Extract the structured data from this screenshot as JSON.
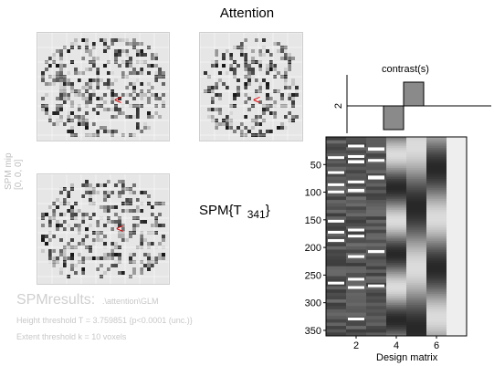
{
  "header": {
    "title": "Attention"
  },
  "mip": {
    "caption_line1": "SPM mip",
    "caption_line2": "[0, 0, 0]",
    "marker_glyph": "<"
  },
  "statistic": {
    "label": "SPM{T",
    "df": "341",
    "close": "}"
  },
  "results": {
    "title": "SPMresults:",
    "path": ".\\attention\\GLM",
    "height_threshold": "Height threshold T = 3.759851  {p<0.0001 (unc.)}",
    "extent_threshold": "Extent threshold k = 10 voxels"
  },
  "contrast": {
    "title": "contrast(s)",
    "ytick": "2",
    "weights": [
      0,
      -1,
      1,
      0,
      0,
      0,
      0
    ]
  },
  "design_matrix": {
    "label": "Design matrix",
    "yticks": [
      "50",
      "100",
      "150",
      "200",
      "250",
      "300",
      "350"
    ],
    "xticks": [
      "2",
      "4",
      "6"
    ],
    "columns": 7,
    "rows": 360
  },
  "colors": {
    "marker": "#e00000",
    "brain": "#e6e6e6",
    "grid": "#ffffff"
  }
}
